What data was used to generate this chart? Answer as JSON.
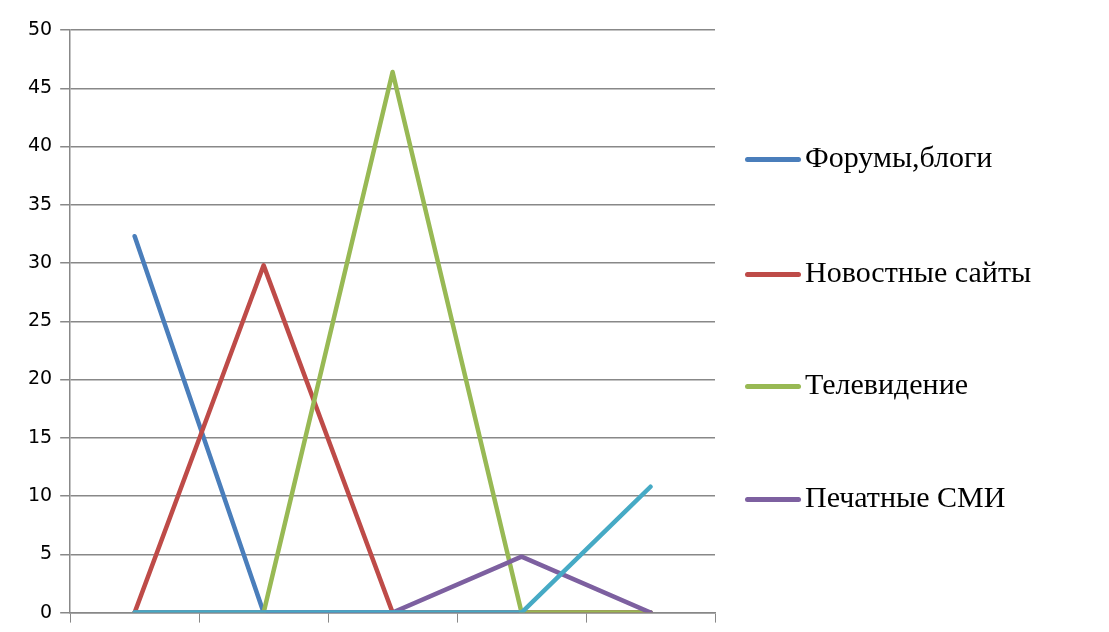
{
  "chart_data": {
    "type": "line",
    "categories": [
      null,
      null,
      null,
      null,
      null
    ],
    "series": [
      {
        "name": "Форумы,блоги",
        "color": "#4a7ebb",
        "values": [
          32.3,
          0,
          0,
          0,
          0
        ]
      },
      {
        "name": "Новостные сайты",
        "color": "#be4b48",
        "values": [
          0,
          29.8,
          0,
          0,
          0
        ]
      },
      {
        "name": "Телевидение",
        "color": "#98b954",
        "values": [
          0,
          0,
          46.4,
          0,
          0
        ]
      },
      {
        "name": "Печатные СМИ",
        "color": "#7d60a0",
        "values": [
          0,
          0,
          0,
          4.8,
          0
        ]
      },
      {
        "color": "#46aac5",
        "values": [
          0,
          0,
          0,
          0,
          10.8
        ]
      }
    ],
    "ylim": [
      0,
      50
    ],
    "yticks": [
      0,
      5,
      10,
      15,
      20,
      25,
      30,
      35,
      40,
      45,
      50
    ],
    "grid": "y",
    "legend": "right",
    "tick_labels": "y",
    "marker": "none",
    "line_style": "solid"
  }
}
